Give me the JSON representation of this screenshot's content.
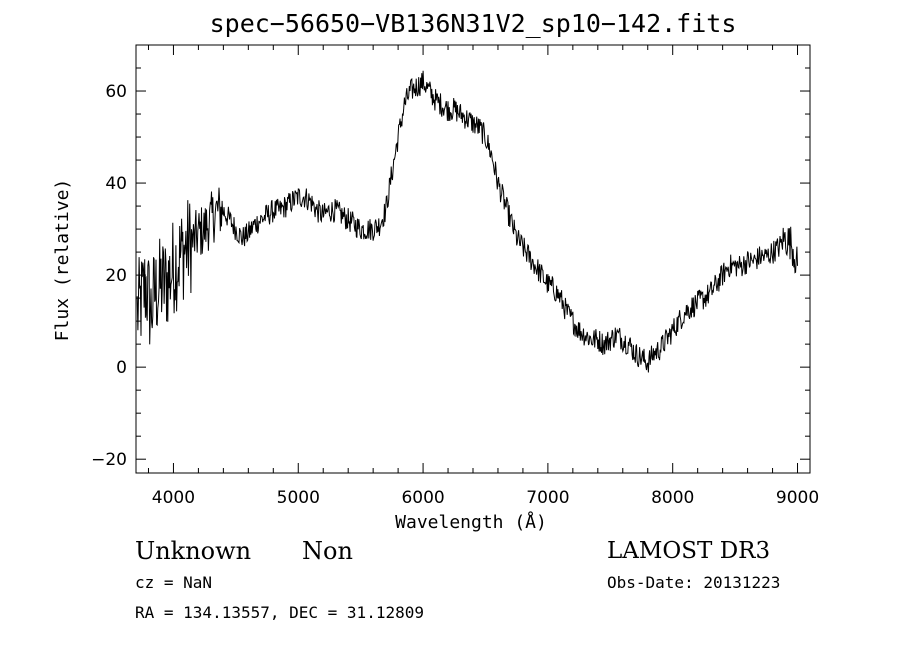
{
  "chart_data": {
    "type": "line",
    "title": "spec−56650−VB136N31V2_sp10−142.fits",
    "xlabel": "Wavelength (Å)",
    "ylabel": "Flux (relative)",
    "xlim": [
      3700,
      9100
    ],
    "ylim": [
      -23,
      70
    ],
    "xticks": [
      4000,
      5000,
      6000,
      7000,
      8000,
      9000
    ],
    "yticks": [
      -20,
      0,
      20,
      40,
      60
    ],
    "ytick_labels": [
      "−20",
      "0",
      "20",
      "40",
      "60"
    ],
    "series": [
      {
        "x": [
          3710,
          3740,
          3780,
          3820,
          3850,
          3880,
          3900,
          3930,
          3960,
          4000,
          4050,
          4100,
          4150,
          4200,
          4250,
          4300,
          4350,
          4400,
          4450,
          4500,
          4550,
          4600,
          4650,
          4700,
          4750,
          4800,
          4850,
          4900,
          4950,
          5000,
          5050,
          5100,
          5150,
          5200,
          5250,
          5300,
          5350,
          5400,
          5450,
          5500,
          5550,
          5600,
          5650,
          5700,
          5750,
          5800,
          5850,
          5900,
          5950,
          6000,
          6050,
          6100,
          6150,
          6200,
          6250,
          6300,
          6350,
          6400,
          6450,
          6500,
          6550,
          6600,
          6650,
          6700,
          6750,
          6800,
          6850,
          6900,
          6950,
          7000,
          7050,
          7100,
          7150,
          7200,
          7250,
          7300,
          7350,
          7400,
          7450,
          7500,
          7550,
          7600,
          7650,
          7700,
          7750,
          7800,
          7850,
          7900,
          7950,
          8000,
          8050,
          8100,
          8150,
          8200,
          8250,
          8300,
          8350,
          8400,
          8450,
          8500,
          8550,
          8600,
          8650,
          8700,
          8750,
          8800,
          8850,
          8900,
          8950,
          9000
        ],
        "y": [
          12,
          14,
          18,
          12,
          16,
          17,
          18,
          18,
          19,
          22,
          24,
          26,
          27,
          29,
          30,
          32,
          34,
          34,
          32,
          30,
          28,
          29,
          31,
          32,
          33,
          34,
          34,
          35,
          36,
          37,
          37,
          36,
          34,
          33,
          34,
          34,
          33,
          32,
          31,
          30,
          30,
          30,
          31,
          34,
          42,
          50,
          57,
          60,
          61,
          62,
          60,
          58,
          57,
          56,
          56,
          55,
          54,
          53,
          52,
          50,
          46,
          40,
          36,
          32,
          28,
          26,
          24,
          22,
          20,
          18,
          17,
          15,
          12,
          10,
          8,
          7,
          6,
          6,
          5,
          6,
          7,
          6,
          5,
          3,
          2,
          1,
          3,
          4,
          6,
          8,
          10,
          12,
          13,
          14,
          15,
          16,
          18,
          20,
          22,
          22,
          22,
          23,
          23,
          24,
          24,
          25,
          26,
          28,
          27,
          22
        ]
      }
    ],
    "grid": false
  },
  "info": {
    "class_name": "Unknown",
    "subclass": "Non",
    "survey": "LAMOST DR3",
    "cz": "cz = NaN",
    "obs_date": "Obs-Date: 20131223",
    "coords": "RA = 134.13557, DEC =  31.12809"
  }
}
